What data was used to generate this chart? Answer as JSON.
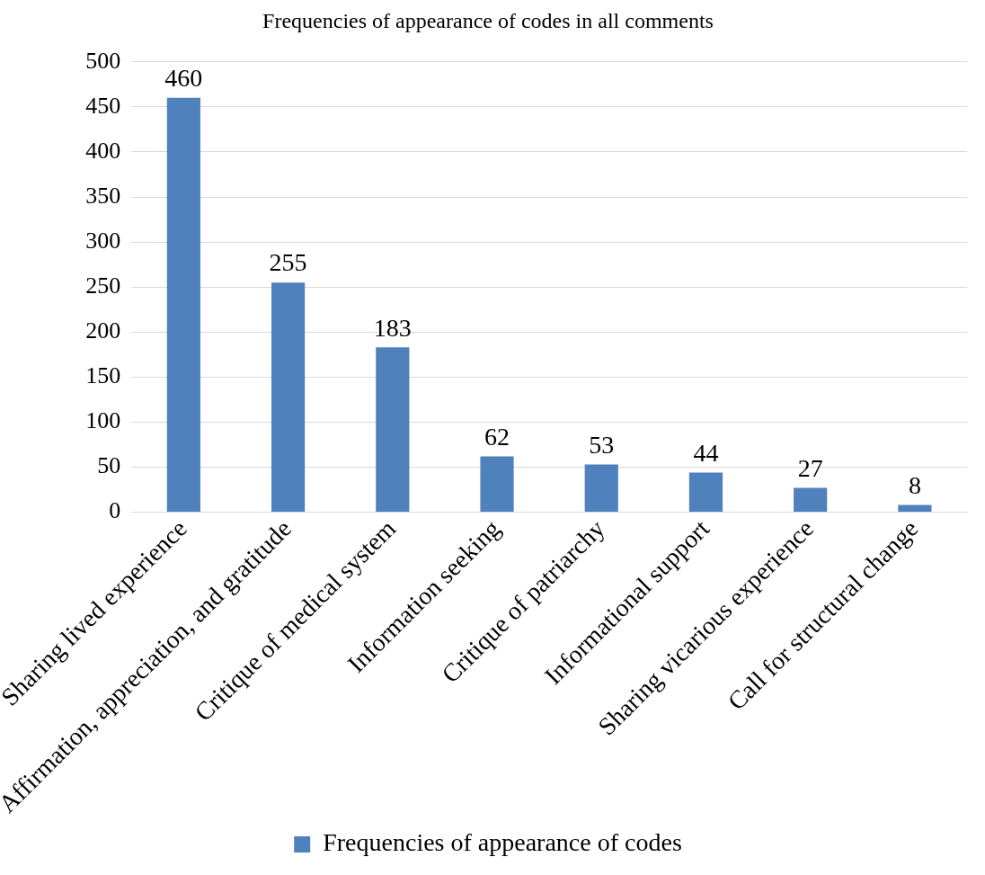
{
  "chart_data": {
    "type": "bar",
    "title": "Frequencies of appearance of codes in all comments",
    "categories": [
      "Sharing lived experience",
      "Affirmation, appreciation, and gratitude",
      "Critique of medical system",
      "Information seeking",
      "Critique of patriarchy",
      "Informational support",
      "Sharing vicarious experience",
      "Call for structural change"
    ],
    "series": [
      {
        "name": "Frequencies of appearance of codes",
        "color": "#4f81bd",
        "values": [
          460,
          255,
          183,
          62,
          53,
          44,
          27,
          8
        ]
      }
    ],
    "ylim": [
      0,
      500
    ],
    "yticks": [
      0,
      50,
      100,
      150,
      200,
      250,
      300,
      350,
      400,
      450,
      500
    ],
    "grid": "y",
    "legend": "bottom",
    "data_labels": true
  }
}
